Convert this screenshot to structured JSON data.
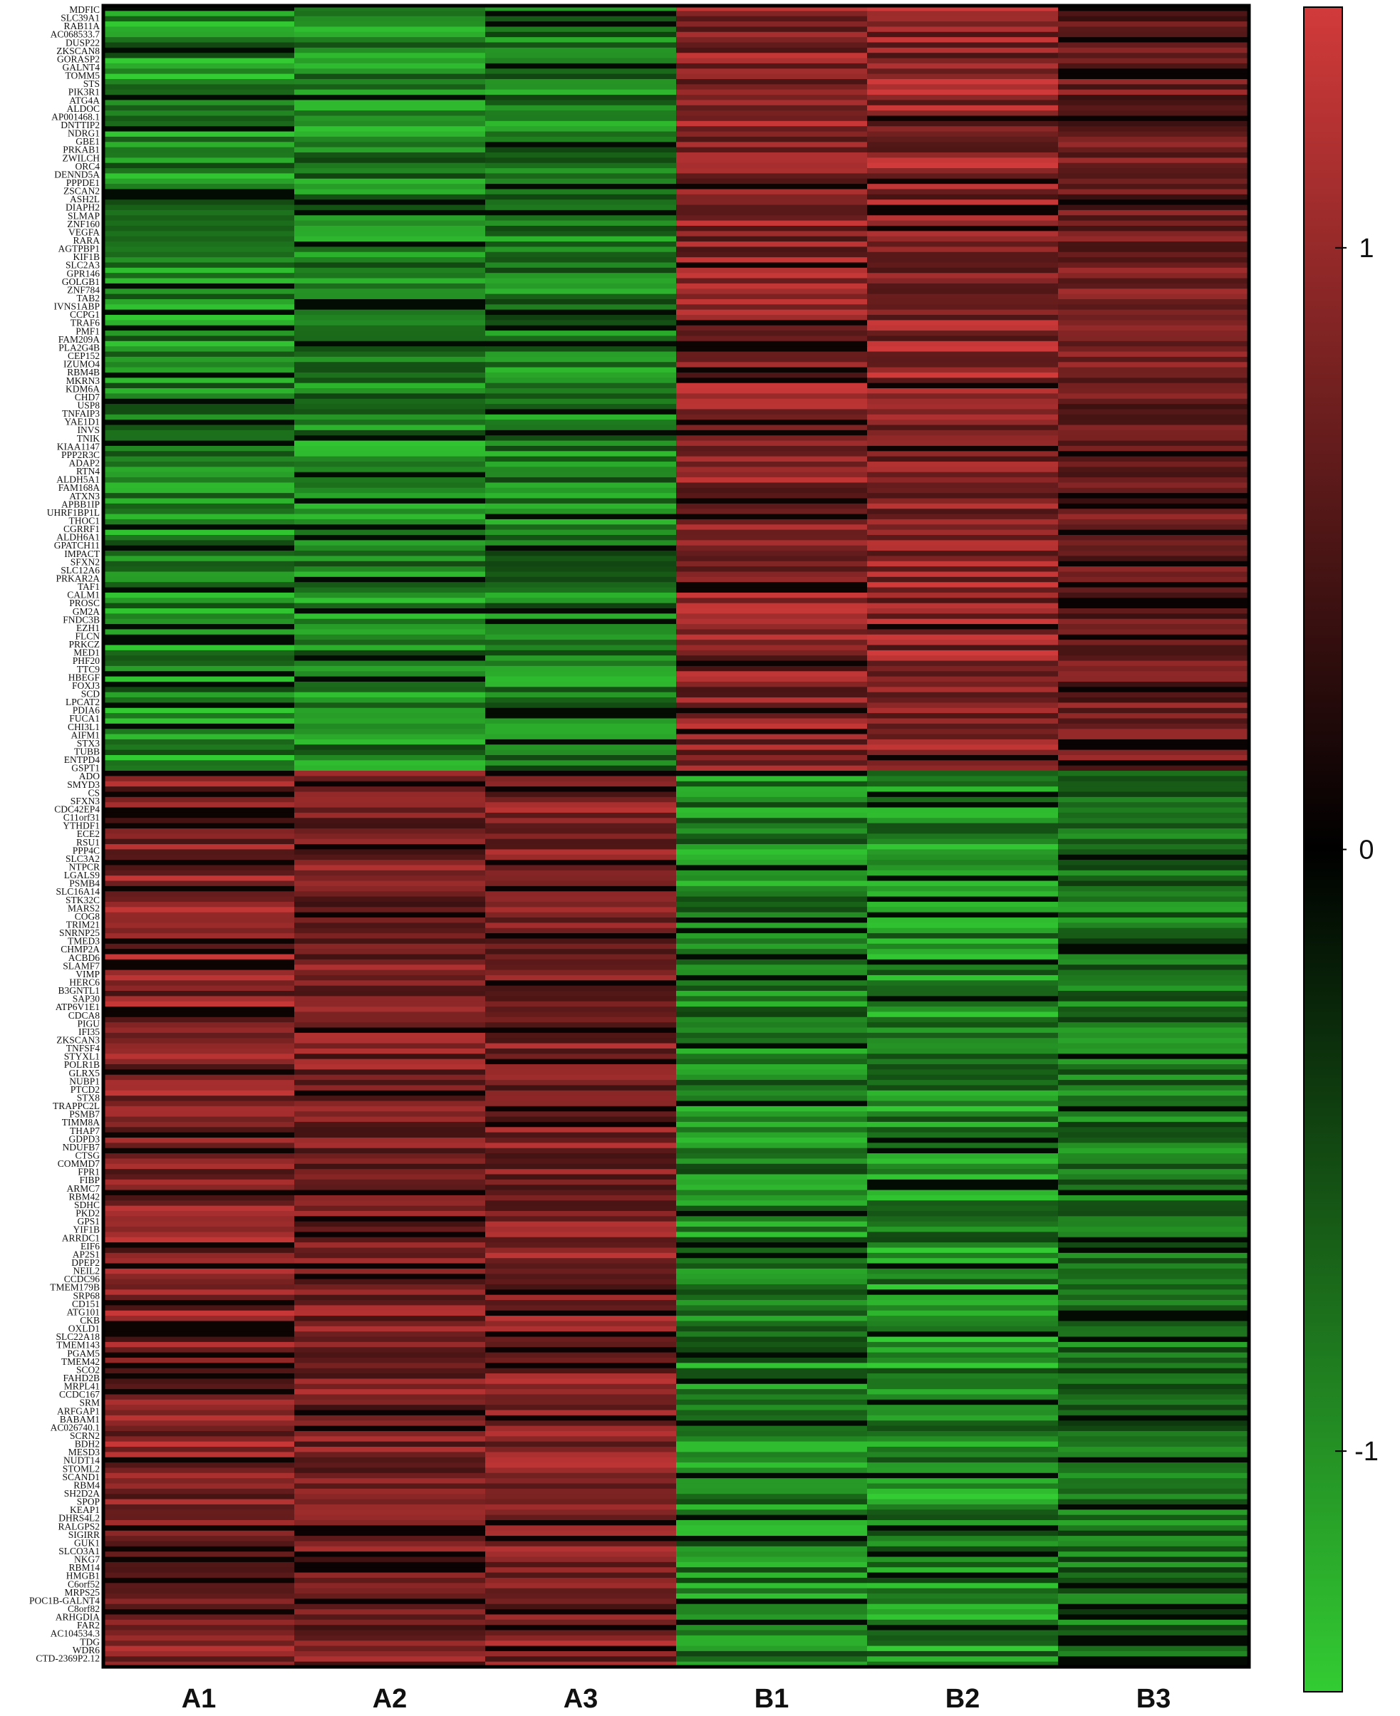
{
  "chart_data": {
    "type": "heatmap",
    "title": "",
    "xlabel": "",
    "ylabel": "",
    "columns": [
      "A1",
      "A2",
      "A3",
      "B1",
      "B2",
      "B3"
    ],
    "colorbar": {
      "ticks": [
        1,
        0,
        -1
      ],
      "tick_labels": [
        "1",
        "0",
        "-1"
      ],
      "range": [
        -1.4,
        1.4
      ],
      "colors": {
        "high": "#d23a3a",
        "mid": "#000000",
        "low": "#33cc33"
      }
    },
    "row_labels": [
      "MDFIC",
      "SLC39A1",
      "RAB11A",
      "AC068533.7",
      "DUSP22",
      "ZKSCAN8",
      "GORASP2",
      "GALNT4",
      "TOMM5",
      "STS",
      "PIK3R1",
      "ATG4A",
      "ALDOC",
      "AP001468.1",
      "DNTTIP2",
      "NDRG1",
      "GBE1",
      "PRKAB1",
      "ZWILCH",
      "ORC4",
      "DENND5A",
      "PPPDE1",
      "ZSCAN2",
      "ASH2L",
      "DIAPH2",
      "SLMAP",
      "ZNF160",
      "VEGFA",
      "RARA",
      "AGTPBP1",
      "KIF1B",
      "SLC2A3",
      "GPR146",
      "GOLGB1",
      "ZNF784",
      "TAB2",
      "IVNS1ABP",
      "CCPG1",
      "TRAF6",
      "PMF1",
      "FAM209A",
      "PLA2G4B",
      "CEP152",
      "IZUMO4",
      "RBM4B",
      "MKRN3",
      "KDM6A",
      "CHD7",
      "USP8",
      "TNFAIP3",
      "YAE1D1",
      "INVS",
      "TNIK",
      "KIAA1147",
      "PPP2R3C",
      "ADAP2",
      "RTN4",
      "ALDH5A1",
      "FAM168A",
      "ATXN3",
      "APBB1IP",
      "UHRF1BP1L",
      "THOC1",
      "CGRRF1",
      "ALDH6A1",
      "GPATCH11",
      "IMPACT",
      "SFXN2",
      "SLC12A6",
      "PRKAR2A",
      "TAF1",
      "CALM1",
      "PROSC",
      "GM2A",
      "FNDC3B",
      "EZH1",
      "FLCN",
      "PRKCZ",
      "MED1",
      "PHF20",
      "TTC9",
      "HBEGF",
      "FOXJ3",
      "SCD",
      "LPCAT2",
      "PDIA6",
      "FUCA1",
      "CHI3L1",
      "AIFM1",
      "STX3",
      "TUBB",
      "ENTPD4",
      "GSPT1",
      "ADO",
      "SMYD3",
      "CS",
      "SFXN3",
      "CDC42EP4",
      "C11orf31",
      "YTHDF1",
      "ECE2",
      "RSU1",
      "PPP4C",
      "SLC3A2",
      "NTPCR",
      "LGALS9",
      "PSMB4",
      "SLC16A14",
      "STK32C",
      "MARS2",
      "COG8",
      "TRIM21",
      "SNRNP25",
      "TMED3",
      "CHMP2A",
      "ACBD6",
      "SLAMF7",
      "VIMP",
      "HERC6",
      "B3GNTL1",
      "SAP30",
      "ATP6V1E1",
      "CDCA8",
      "PIGU",
      "IFI35",
      "ZKSCAN3",
      "TNFSF4",
      "STYXL1",
      "POLR1B",
      "GLRX5",
      "NUBP1",
      "PTCD2",
      "STX8",
      "TRAPPC2L",
      "PSMB7",
      "TIMM8A",
      "THAP7",
      "GDPD3",
      "NDUFB7",
      "CTSG",
      "COMMD7",
      "FPR1",
      "FIBP",
      "ARMC7",
      "RBM42",
      "SDHC",
      "PKD2",
      "GPS1",
      "YIF1B",
      "ARRDC1",
      "EIF6",
      "AP2S1",
      "DPEP2",
      "NEIL2",
      "CCDC96",
      "TMEM179B",
      "SRP68",
      "CD151",
      "ATG101",
      "CKB",
      "OXLD1",
      "SLC22A18",
      "TMEM143",
      "PGAM5",
      "TMEM42",
      "SCO2",
      "FAHD2B",
      "MRPL41",
      "CCDC167",
      "SRM",
      "ARFGAP1",
      "BABAM1",
      "AC026740.1",
      "SCRN2",
      "BDH2",
      "MESD3",
      "NUDT14",
      "STOML2",
      "SCAND1",
      "RBM4",
      "SH2D2A",
      "SPOP",
      "KEAP1",
      "DHRS4L2",
      "RALGPS2",
      "SIGIRR",
      "GUK1",
      "SLCO3A1",
      "NKG7",
      "RBM14",
      "HMGB1",
      "C6orf52",
      "MRPS25",
      "POC1B-GALNT4",
      "C8orf82",
      "ARHGDIA",
      "FAR2",
      "AC104534.3",
      "TDG",
      "WDR6",
      "CTD-2369P2.12"
    ],
    "groups": [
      {
        "name": "",
        "row_count": 146,
        "values_by_column": [
          -1.05,
          -1.0,
          -0.95,
          1.0,
          1.05,
          0.8
        ]
      },
      {
        "name": "",
        "row_count": 171,
        "values_by_column": [
          1.0,
          0.9,
          0.95,
          -1.0,
          -1.05,
          -0.85
        ]
      }
    ]
  }
}
